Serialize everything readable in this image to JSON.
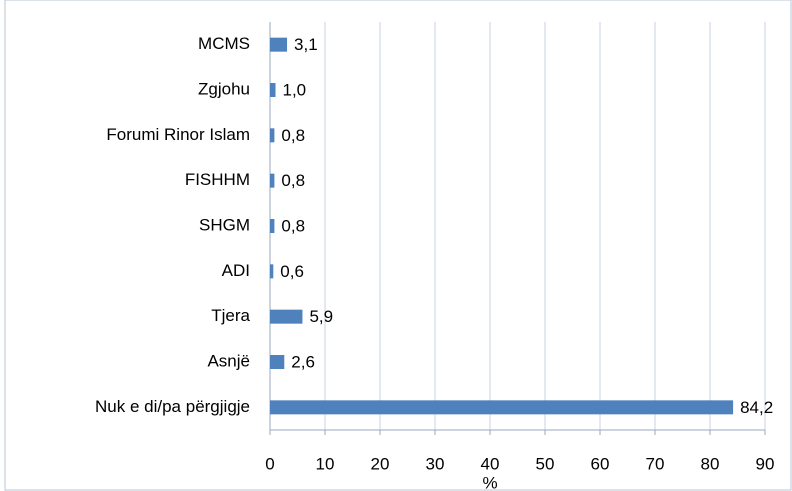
{
  "chart_data": {
    "type": "hbar",
    "categories": [
      "MCMS",
      "Zgjohu",
      "Forumi Rinor Islam",
      "FISHHM",
      "SHGM",
      "ADI",
      "Tjera",
      "Asnjë",
      "Nuk e di/pa përgjigje"
    ],
    "values": [
      3.1,
      1.0,
      0.8,
      0.8,
      0.8,
      0.6,
      5.9,
      2.6,
      84.2
    ],
    "value_labels": [
      "3,1",
      "1,0",
      "0,8",
      "0,8",
      "0,8",
      "0,6",
      "5,9",
      "2,6",
      "84,2"
    ],
    "color": "#4f81bd",
    "xlabel": "%",
    "xlim": [
      0,
      90
    ],
    "xticks": [
      0,
      10,
      20,
      30,
      40,
      50,
      60,
      70,
      80,
      90
    ],
    "grid": true
  }
}
